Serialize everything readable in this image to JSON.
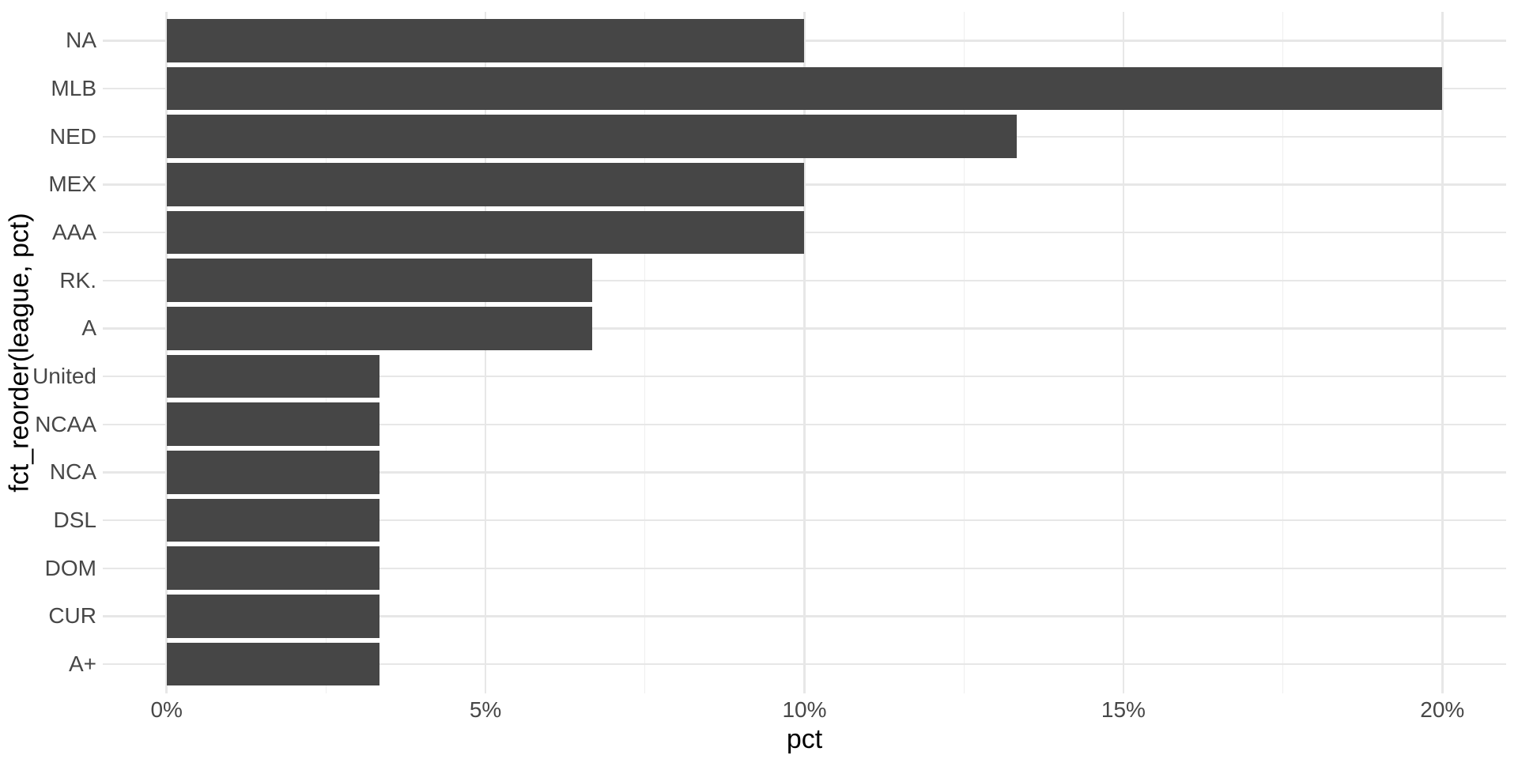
{
  "chart_data": {
    "type": "bar",
    "orientation": "horizontal",
    "title": "",
    "xlabel": "pct",
    "ylabel": "fct_reorder(league, pct)",
    "categories": [
      "NA",
      "MLB",
      "NED",
      "MEX",
      "AAA",
      "RK.",
      "A",
      "United",
      "NCAA",
      "NCA",
      "DSL",
      "DOM",
      "CUR",
      "A+"
    ],
    "values": [
      10,
      20,
      13.333,
      10,
      10,
      6.667,
      6.667,
      3.333,
      3.333,
      3.333,
      3.333,
      3.333,
      3.333,
      3.333
    ],
    "value_unit": "percent",
    "x_tick_values": [
      0,
      5,
      10,
      15,
      20
    ],
    "x_tick_labels": [
      "0%",
      "5%",
      "10%",
      "15%",
      "20%"
    ],
    "x_minor_tick_values": [
      2.5,
      7.5,
      12.5,
      17.5
    ],
    "xlim": [
      -1,
      21
    ],
    "grid": "major-and-minor",
    "legend": "none",
    "colors": {
      "bar_fill": "#464646",
      "gridline_major": "#E7E7E7",
      "gridline_minor": "#EFEFEF",
      "axis_text": "#474747",
      "axis_title": "#000000",
      "background": "#FFFFFF"
    }
  }
}
